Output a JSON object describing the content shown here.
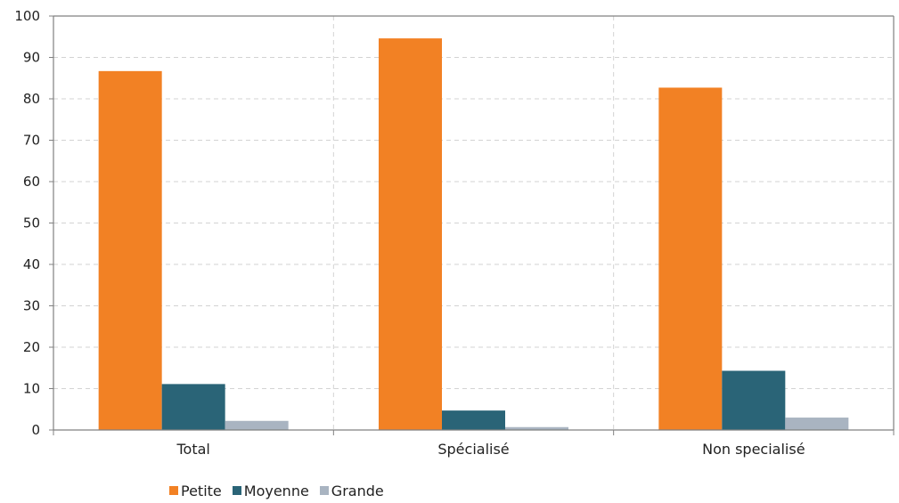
{
  "chart_data": {
    "type": "bar",
    "categories": [
      "Total",
      "Spécialisé",
      "Non specialisé"
    ],
    "series": [
      {
        "name": "Petite",
        "color": "#f28124",
        "values": [
          86.7,
          94.6,
          82.7
        ]
      },
      {
        "name": "Moyenne",
        "color": "#2a6477",
        "values": [
          11.1,
          4.7,
          14.3
        ]
      },
      {
        "name": "Grande",
        "color": "#a9b4c1",
        "values": [
          2.2,
          0.7,
          3.0
        ]
      }
    ],
    "title": "",
    "xlabel": "",
    "ylabel": "",
    "ylim": [
      0,
      100
    ],
    "yticks": [
      0,
      10,
      20,
      30,
      40,
      50,
      60,
      70,
      80,
      90,
      100
    ],
    "grid": true,
    "legend_position": "bottom"
  }
}
